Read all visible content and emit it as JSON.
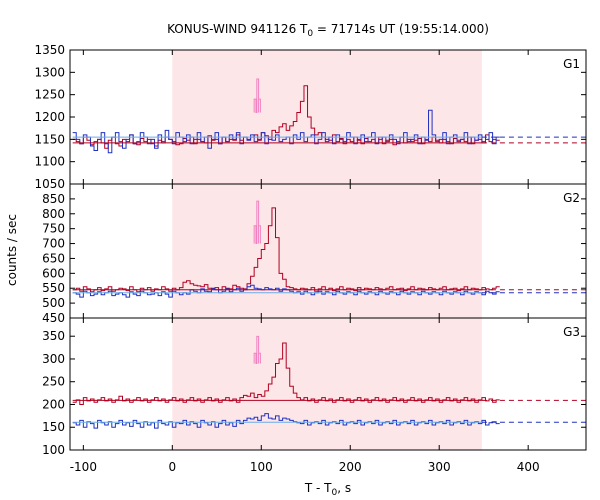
{
  "chart_data": {
    "type": "line",
    "title_main": "KONUS-WIND 941126 T",
    "title_sub": "0",
    "title_rest": " = 71714s UT (19:55:14.000)",
    "xlabel_main": "T - T",
    "xlabel_sub": "0",
    "xlabel_rest": ", s",
    "ylabel": "counts / sec",
    "xlim": [
      -115,
      465
    ],
    "xticks": [
      -100,
      0,
      100,
      200,
      300,
      400
    ],
    "shaded_interval": [
      0,
      348
    ],
    "shade_color": "#fde6e8",
    "panels": [
      {
        "label": "G1",
        "ylim": [
          1050,
          1350
        ],
        "yticks": [
          1050,
          1100,
          1150,
          1200,
          1250,
          1300,
          1350
        ],
        "bg_red": 1142,
        "bg_blue": 1155,
        "series": [
          {
            "color": "#b00020",
            "bin": 4,
            "values": [
              1150,
              1145,
              1140,
              1155,
              1148,
              1138,
              1145,
              1150,
              1142,
              1130,
              1148,
              1155,
              1140,
              1135,
              1150,
              1145,
              1160,
              1140,
              1138,
              1152,
              1145,
              1150,
              1140,
              1135,
              1148,
              1142,
              1155,
              1150,
              1145,
              1138,
              1140,
              1152,
              1148,
              1155,
              1140,
              1150,
              1145,
              1142,
              1158,
              1148,
              1150,
              1140,
              1155,
              1145,
              1150,
              1148,
              1160,
              1148,
              1155,
              1150,
              1155,
              1160,
              1148,
              1165,
              1158,
              1150,
              1170,
              1165,
              1178,
              1185,
              1170,
              1180,
              1190,
              1210,
              1235,
              1270,
              1200,
              1175,
              1160,
              1165,
              1155,
              1150,
              1148,
              1160,
              1145,
              1152,
              1140,
              1150,
              1145,
              1155,
              1148,
              1140,
              1152,
              1145,
              1150,
              1142,
              1155,
              1140,
              1148,
              1150,
              1138,
              1145,
              1155,
              1142,
              1150,
              1145,
              1148,
              1152,
              1140,
              1150,
              1145,
              1155,
              1148,
              1142,
              1150,
              1145,
              1140,
              1152,
              1148,
              1150,
              1145,
              1155,
              1140,
              1148,
              1150,
              1142,
              1160,
              1145,
              1150,
              1148
            ]
          },
          {
            "color": "#2030c0",
            "bin": 4,
            "values": [
              1165,
              1150,
              1140,
              1160,
              1155,
              1135,
              1125,
              1150,
              1165,
              1140,
              1120,
              1155,
              1165,
              1145,
              1130,
              1150,
              1160,
              1140,
              1145,
              1165,
              1155,
              1140,
              1150,
              1130,
              1160,
              1145,
              1170,
              1150,
              1140,
              1165,
              1155,
              1145,
              1160,
              1140,
              1150,
              1165,
              1145,
              1155,
              1130,
              1150,
              1165,
              1140,
              1155,
              1145,
              1160,
              1150,
              1165,
              1140,
              1155,
              1148,
              1160,
              1145,
              1150,
              1165,
              1140,
              1155,
              1148,
              1160,
              1145,
              1150,
              1155,
              1140,
              1160,
              1150,
              1165,
              1145,
              1155,
              1160,
              1140,
              1150,
              1165,
              1145,
              1155,
              1140,
              1160,
              1150,
              1145,
              1165,
              1155,
              1140,
              1150,
              1160,
              1145,
              1155,
              1165,
              1140,
              1150,
              1155,
              1145,
              1160,
              1150,
              1140,
              1155,
              1165,
              1145,
              1150,
              1160,
              1140,
              1155,
              1148,
              1215,
              1160,
              1145,
              1150,
              1165,
              1140,
              1155,
              1160,
              1145,
              1150,
              1165,
              1140,
              1155,
              1148,
              1160,
              1145,
              1150,
              1165,
              1140,
              1155
            ]
          }
        ]
      },
      {
        "label": "G2",
        "ylim": [
          450,
          900
        ],
        "yticks": [
          450,
          500,
          550,
          600,
          650,
          700,
          750,
          800,
          850
        ],
        "bg_red": 545,
        "bg_blue": 535,
        "series": [
          {
            "color": "#b00020",
            "bin": 4,
            "values": [
              545,
              550,
              540,
              555,
              548,
              538,
              545,
              552,
              542,
              548,
              555,
              540,
              545,
              550,
              548,
              542,
              555,
              545,
              538,
              550,
              545,
              552,
              540,
              548,
              545,
              555,
              548,
              540,
              550,
              545,
              552,
              570,
              575,
              565,
              560,
              558,
              555,
              562,
              550,
              548,
              552,
              545,
              555,
              550,
              548,
              560,
              555,
              550,
              548,
              565,
              590,
              620,
              650,
              680,
              700,
              760,
              820,
              720,
              600,
              580,
              555,
              552,
              548,
              545,
              550,
              548,
              545,
              552,
              540,
              548,
              555,
              545,
              550,
              542,
              548,
              555,
              545,
              550,
              548,
              542,
              552,
              545,
              550,
              548,
              545,
              552,
              548,
              545,
              550,
              555,
              545,
              548,
              550,
              542,
              548,
              555,
              545,
              550,
              548,
              545,
              552,
              548,
              545,
              550,
              555,
              545,
              548,
              550,
              542,
              548,
              555,
              545,
              550,
              548,
              545,
              552,
              548,
              545,
              550,
              555
            ]
          },
          {
            "color": "#2030c0",
            "bin": 4,
            "values": [
              535,
              530,
              520,
              540,
              535,
              525,
              530,
              538,
              528,
              535,
              540,
              525,
              530,
              535,
              528,
              520,
              538,
              530,
              525,
              540,
              535,
              528,
              530,
              535,
              525,
              538,
              530,
              520,
              540,
              535,
              528,
              535,
              530,
              545,
              540,
              535,
              548,
              540,
              538,
              550,
              545,
              535,
              540,
              548,
              538,
              545,
              550,
              540,
              545,
              555,
              560,
              550,
              548,
              545,
              552,
              548,
              545,
              550,
              540,
              548,
              545,
              540,
              535,
              538,
              530,
              540,
              535,
              528,
              535,
              540,
              530,
              538,
              535,
              528,
              540,
              535,
              530,
              538,
              535,
              528,
              540,
              535,
              530,
              538,
              535,
              528,
              540,
              535,
              530,
              538,
              535,
              528,
              540,
              535,
              530,
              538,
              535,
              528,
              540,
              535,
              530,
              538,
              535,
              528,
              540,
              535,
              530,
              538,
              535,
              528,
              540,
              535,
              530,
              538,
              535,
              528,
              540,
              535,
              530,
              538
            ]
          }
        ]
      },
      {
        "label": "G3",
        "ylim": [
          100,
          390
        ],
        "yticks": [
          100,
          150,
          200,
          250,
          300,
          350
        ],
        "bg_red": 209,
        "bg_blue": 161,
        "series": [
          {
            "color": "#b00020",
            "bin": 4,
            "values": [
              205,
              210,
              200,
              215,
              208,
              212,
              205,
              210,
              215,
              208,
              212,
              205,
              210,
              218,
              208,
              212,
              205,
              210,
              215,
              208,
              212,
              205,
              210,
              215,
              208,
              212,
              205,
              210,
              215,
              208,
              212,
              205,
              210,
              215,
              208,
              212,
              205,
              210,
              215,
              208,
              212,
              205,
              210,
              215,
              208,
              212,
              205,
              215,
              220,
              218,
              225,
              215,
              222,
              218,
              230,
              245,
              260,
              290,
              300,
              335,
              280,
              240,
              225,
              215,
              210,
              215,
              208,
              212,
              205,
              210,
              215,
              208,
              212,
              205,
              210,
              215,
              208,
              212,
              205,
              210,
              215,
              208,
              212,
              205,
              210,
              215,
              208,
              212,
              205,
              210,
              215,
              208,
              212,
              205,
              210,
              215,
              208,
              212,
              205,
              210,
              215,
              208,
              212,
              205,
              210,
              215,
              208,
              212,
              205,
              210,
              215,
              208,
              212,
              205,
              210,
              215,
              208,
              212,
              205,
              210
            ]
          },
          {
            "color": "#2030c0",
            "bin": 4,
            "values": [
              160,
              155,
              165,
              150,
              162,
              158,
              148,
              165,
              160,
              155,
              162,
              150,
              158,
              165,
              155,
              160,
              152,
              165,
              158,
              150,
              162,
              155,
              160,
              148,
              165,
              158,
              155,
              162,
              150,
              160,
              158,
              165,
              155,
              162,
              158,
              150,
              165,
              160,
              155,
              162,
              150,
              158,
              165,
              155,
              160,
              152,
              165,
              158,
              165,
              170,
              168,
              172,
              165,
              175,
              180,
              170,
              168,
              175,
              165,
              170,
              168,
              165,
              162,
              160,
              158,
              165,
              155,
              160,
              162,
              158,
              165,
              155,
              160,
              162,
              158,
              165,
              155,
              160,
              162,
              158,
              165,
              155,
              160,
              162,
              158,
              165,
              155,
              160,
              162,
              158,
              165,
              155,
              160,
              162,
              158,
              165,
              155,
              160,
              162,
              158,
              165,
              155,
              160,
              162,
              158,
              165,
              155,
              160,
              162,
              158,
              165,
              155,
              160,
              162,
              158,
              165,
              155,
              160,
              162,
              158
            ]
          }
        ]
      }
    ],
    "peak_overlay_color": "#f080c0"
  }
}
